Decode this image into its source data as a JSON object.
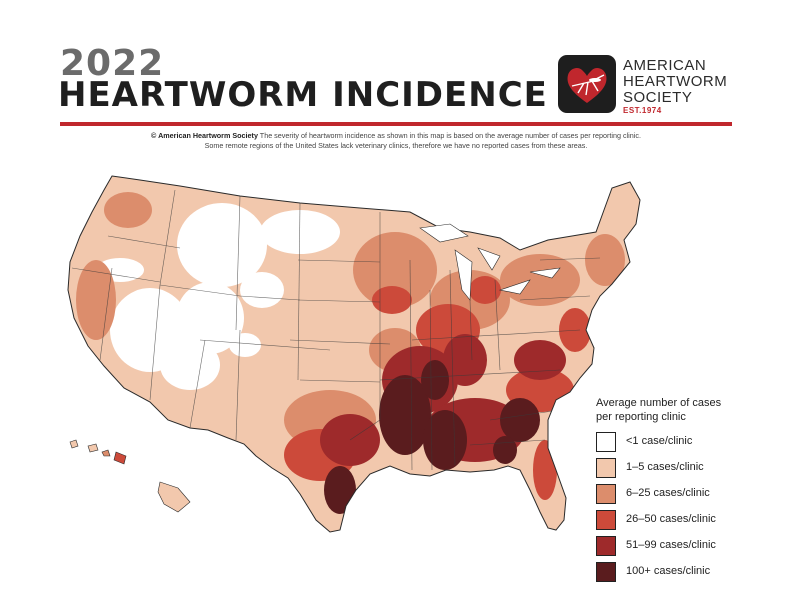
{
  "header": {
    "year": "2022",
    "title": "HEARTWORM INCIDENCE"
  },
  "logo": {
    "line1": "AMERICAN",
    "line2": "HEARTWORM",
    "line3": "SOCIETY",
    "est": "EST.1974"
  },
  "subtitle": {
    "bold": "© American Heartworm Society",
    "line1_rest": " The severity of heartworm incidence as shown in this map is based on the average number of cases per reporting clinic.",
    "line2": "Some remote regions of the United States lack veterinary clinics, therefore we have no reported cases from these areas."
  },
  "legend": {
    "title": "Average number of cases per reporting clinic",
    "items": [
      {
        "label": "<1 case/clinic",
        "color": "#ffffff"
      },
      {
        "label": "1–5 cases/clinic",
        "color": "#f2c8ad"
      },
      {
        "label": "6–25 cases/clinic",
        "color": "#dc8d6c"
      },
      {
        "label": "26–50 cases/clinic",
        "color": "#cc4a3a"
      },
      {
        "label": "51–99 cases/clinic",
        "color": "#9e2a2b"
      },
      {
        "label": "100+ cases/clinic",
        "color": "#5a1c1e"
      }
    ]
  },
  "colors": {
    "accent": "#c0272d",
    "title_dark": "#1f1f1f",
    "title_gray": "#6b6b6b"
  }
}
